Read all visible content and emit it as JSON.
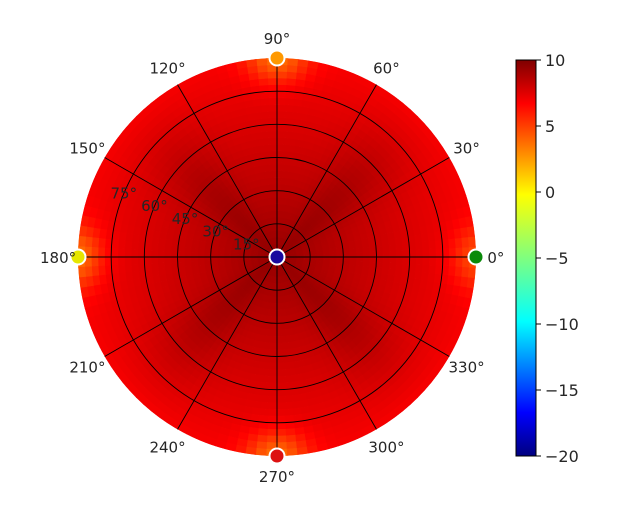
{
  "chart_data": {
    "type": "heatmap",
    "projection": "polar",
    "angular_axis": {
      "ticks": [
        0,
        30,
        60,
        90,
        120,
        150,
        180,
        210,
        240,
        270,
        300,
        330
      ],
      "tick_labels": [
        "0°",
        "30°",
        "60°",
        "90°",
        "120°",
        "150°",
        "180°",
        "210°",
        "240°",
        "270°",
        "300°",
        "330°"
      ]
    },
    "radial_axis": {
      "ticks": [
        15,
        30,
        45,
        60,
        75,
        90
      ],
      "tick_labels": [
        "15°",
        "30°",
        "45°",
        "60°",
        "75°"
      ],
      "range": [
        0,
        90
      ]
    },
    "grid": true,
    "colorbar": {
      "colormap": "jet",
      "range": [
        -20,
        10
      ],
      "ticks": [
        10,
        5,
        0,
        -5,
        -10,
        -15,
        -20
      ],
      "tick_labels": [
        "10",
        "5",
        "0",
        "−5",
        "−10",
        "−15",
        "−20"
      ],
      "placement": "right"
    },
    "field": {
      "description_values": "approximate value of the shaded field in colorbar units",
      "center_value": 9.5,
      "edge_value": 6.5,
      "diagonal_ridge_value": 7.5,
      "cardinal_edge_hotspots": [
        {
          "azimuth": 0,
          "value": 4.0
        },
        {
          "azimuth": 90,
          "value": 3.0
        },
        {
          "azimuth": 180,
          "value": 3.0
        },
        {
          "azimuth": 270,
          "value": 3.0
        }
      ]
    },
    "markers": [
      {
        "azimuth": 0,
        "elevation_offset": 90,
        "value": -5,
        "color": "#0a8a0a"
      },
      {
        "azimuth": 90,
        "elevation_offset": 90,
        "value": 3,
        "color": "#ff9900"
      },
      {
        "azimuth": 180,
        "elevation_offset": 90,
        "value": 0,
        "color": "#e6e600"
      },
      {
        "azimuth": 270,
        "elevation_offset": 90,
        "value": 8,
        "color": "#dd1111"
      },
      {
        "azimuth": 0,
        "elevation_offset": 0,
        "value": -20,
        "color": "#1a0a9e"
      }
    ]
  }
}
